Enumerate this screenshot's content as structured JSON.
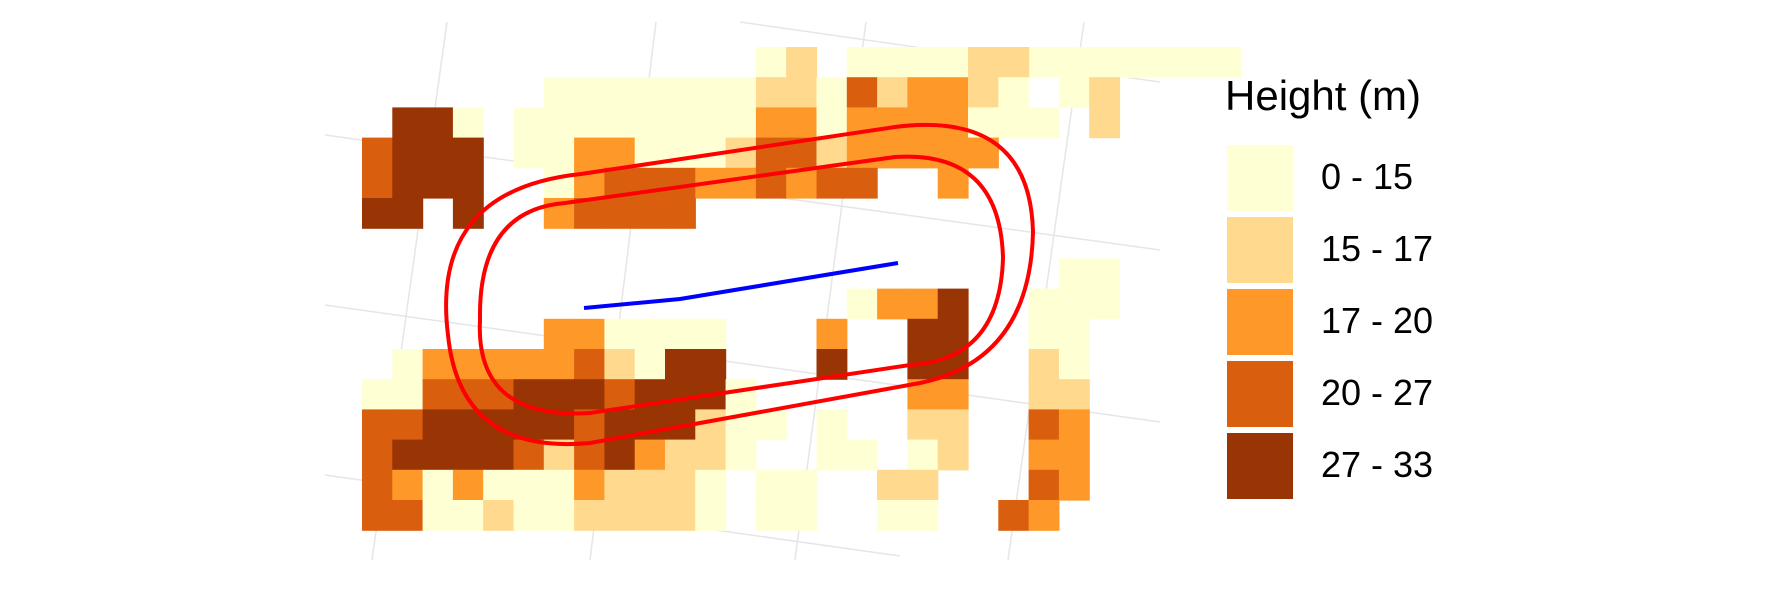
{
  "legend": {
    "title": "Height (m)",
    "classes": [
      {
        "label": "0 - 15",
        "color": "#FFFFD4"
      },
      {
        "label": "15 - 17",
        "color": "#FED98E"
      },
      {
        "label": "17 - 20",
        "color": "#FE9929"
      },
      {
        "label": "20 - 27",
        "color": "#D95F0E"
      },
      {
        "label": "27 - 33",
        "color": "#993404"
      }
    ]
  },
  "raster": {
    "class_rows": [
      "..............L.LL.LLLL.LL",
      "......LLL.LLLLMM.MHMMMLL.L",
      "..VVL.LLLLLLLLMHHLMMMLLL.L",
      ".UVV..LLMMMMMMMHHMLMMHHHH.",
      ".UVVV..LLMUUUMMUUMUU..LM..",
      ".VVVV..MUUUHUU............",
      "..........................",
      "..........................",
      "............LLLLLLLLLLLLLL",
      "...........................",
      ".................LLLL.LL...",
      "...........................",
      "...........................",
      "..........................."
    ],
    "color_key": {
      "L": 0,
      "M": 2,
      "U": 3,
      "V": 4,
      "H": 1
    }
  },
  "map_colors": {
    "buffer_line": "#FF0000",
    "center_line": "#0000FF",
    "grid": "#E6E6E6"
  }
}
